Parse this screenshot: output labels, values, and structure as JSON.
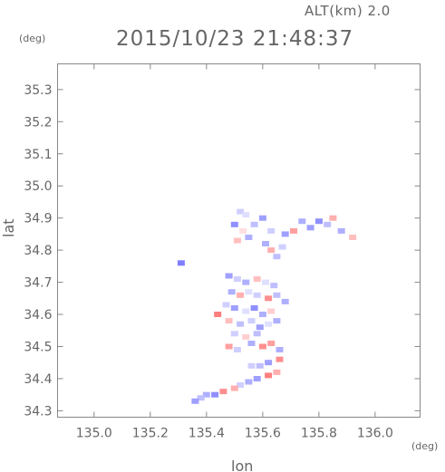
{
  "header": {
    "altitude": "ALT(km)  2.0",
    "datetime": "2015/10/23  21:48:37"
  },
  "axes": {
    "y_unit": "(deg)",
    "x_unit": "(deg)",
    "xlabel": "lon",
    "ylabel": "lat"
  },
  "chart_data": {
    "type": "heatmap",
    "xlabel": "lon",
    "ylabel": "lat",
    "xlim": [
      134.87,
      136.16
    ],
    "ylim": [
      34.28,
      35.38
    ],
    "x_ticks": [
      "135.0",
      "135.2",
      "135.4",
      "135.6",
      "135.8",
      "136.0"
    ],
    "y_ticks": [
      "34.3",
      "34.4",
      "34.5",
      "34.6",
      "34.7",
      "34.8",
      "34.9",
      "35.0",
      "35.1",
      "35.2",
      "35.3"
    ],
    "x_tick_values": [
      135.0,
      135.2,
      135.4,
      135.6,
      135.8,
      136.0
    ],
    "y_tick_values": [
      34.3,
      34.4,
      34.5,
      34.6,
      34.7,
      34.8,
      34.9,
      35.0,
      35.1,
      35.2,
      35.3
    ],
    "colors": {
      "positive": "#ff6b6b",
      "negative": "#6b6bff",
      "neutral": "#d8d8ee"
    },
    "points": [
      {
        "lon": 135.52,
        "lat": 34.92,
        "v": -0.3
      },
      {
        "lon": 135.54,
        "lat": 34.91,
        "v": -0.2
      },
      {
        "lon": 135.5,
        "lat": 34.88,
        "v": -0.7
      },
      {
        "lon": 135.53,
        "lat": 34.86,
        "v": 0.2
      },
      {
        "lon": 135.55,
        "lat": 34.84,
        "v": -0.5
      },
      {
        "lon": 135.51,
        "lat": 34.83,
        "v": 0.4
      },
      {
        "lon": 135.57,
        "lat": 34.88,
        "v": -0.4
      },
      {
        "lon": 135.6,
        "lat": 34.9,
        "v": -0.6
      },
      {
        "lon": 135.63,
        "lat": 34.86,
        "v": -0.3
      },
      {
        "lon": 135.61,
        "lat": 34.82,
        "v": -0.5
      },
      {
        "lon": 135.63,
        "lat": 34.8,
        "v": 0.5
      },
      {
        "lon": 135.65,
        "lat": 34.78,
        "v": -0.4
      },
      {
        "lon": 135.67,
        "lat": 34.81,
        "v": -0.3
      },
      {
        "lon": 135.68,
        "lat": 34.85,
        "v": -0.6
      },
      {
        "lon": 135.71,
        "lat": 34.86,
        "v": 0.6
      },
      {
        "lon": 135.74,
        "lat": 34.89,
        "v": -0.5
      },
      {
        "lon": 135.77,
        "lat": 34.87,
        "v": -0.6
      },
      {
        "lon": 135.8,
        "lat": 34.89,
        "v": -0.7
      },
      {
        "lon": 135.83,
        "lat": 34.88,
        "v": -0.4
      },
      {
        "lon": 135.85,
        "lat": 34.9,
        "v": 0.5
      },
      {
        "lon": 135.88,
        "lat": 34.86,
        "v": -0.5
      },
      {
        "lon": 135.92,
        "lat": 34.84,
        "v": 0.4
      },
      {
        "lon": 135.31,
        "lat": 34.76,
        "v": -0.8
      },
      {
        "lon": 135.48,
        "lat": 34.72,
        "v": -0.6
      },
      {
        "lon": 135.51,
        "lat": 34.71,
        "v": -0.3
      },
      {
        "lon": 135.54,
        "lat": 34.7,
        "v": -0.5
      },
      {
        "lon": 135.58,
        "lat": 34.71,
        "v": 0.4
      },
      {
        "lon": 135.61,
        "lat": 34.7,
        "v": -0.2
      },
      {
        "lon": 135.64,
        "lat": 34.69,
        "v": -0.4
      },
      {
        "lon": 135.49,
        "lat": 34.67,
        "v": -0.5
      },
      {
        "lon": 135.52,
        "lat": 34.66,
        "v": 0.5
      },
      {
        "lon": 135.55,
        "lat": 34.67,
        "v": -0.2
      },
      {
        "lon": 135.58,
        "lat": 34.66,
        "v": -0.3
      },
      {
        "lon": 135.62,
        "lat": 34.65,
        "v": 0.7
      },
      {
        "lon": 135.65,
        "lat": 34.66,
        "v": -0.4
      },
      {
        "lon": 135.68,
        "lat": 34.64,
        "v": -0.5
      },
      {
        "lon": 135.47,
        "lat": 34.63,
        "v": -0.3
      },
      {
        "lon": 135.5,
        "lat": 34.62,
        "v": -0.6
      },
      {
        "lon": 135.54,
        "lat": 34.61,
        "v": -0.2
      },
      {
        "lon": 135.57,
        "lat": 34.62,
        "v": -0.7
      },
      {
        "lon": 135.6,
        "lat": 34.6,
        "v": -0.5
      },
      {
        "lon": 135.63,
        "lat": 34.61,
        "v": 0.3
      },
      {
        "lon": 135.44,
        "lat": 34.6,
        "v": 0.8
      },
      {
        "lon": 135.48,
        "lat": 34.58,
        "v": 0.4
      },
      {
        "lon": 135.52,
        "lat": 34.57,
        "v": -0.4
      },
      {
        "lon": 135.56,
        "lat": 34.58,
        "v": -0.3
      },
      {
        "lon": 135.59,
        "lat": 34.56,
        "v": -0.6
      },
      {
        "lon": 135.62,
        "lat": 34.57,
        "v": -0.2
      },
      {
        "lon": 135.65,
        "lat": 34.58,
        "v": -0.5
      },
      {
        "lon": 135.5,
        "lat": 34.54,
        "v": -0.3
      },
      {
        "lon": 135.54,
        "lat": 34.53,
        "v": 0.3
      },
      {
        "lon": 135.58,
        "lat": 34.54,
        "v": -0.4
      },
      {
        "lon": 135.48,
        "lat": 34.5,
        "v": 0.6
      },
      {
        "lon": 135.51,
        "lat": 34.49,
        "v": -0.3
      },
      {
        "lon": 135.56,
        "lat": 34.51,
        "v": -0.5
      },
      {
        "lon": 135.6,
        "lat": 34.5,
        "v": 0.7
      },
      {
        "lon": 135.63,
        "lat": 34.51,
        "v": 0.6
      },
      {
        "lon": 135.66,
        "lat": 34.49,
        "v": -0.5
      },
      {
        "lon": 135.66,
        "lat": 34.46,
        "v": 0.7
      },
      {
        "lon": 135.62,
        "lat": 34.45,
        "v": -0.6
      },
      {
        "lon": 135.59,
        "lat": 34.44,
        "v": -0.4
      },
      {
        "lon": 135.56,
        "lat": 34.44,
        "v": -0.3
      },
      {
        "lon": 135.65,
        "lat": 34.42,
        "v": 0.5
      },
      {
        "lon": 135.62,
        "lat": 34.41,
        "v": 0.8
      },
      {
        "lon": 135.58,
        "lat": 34.4,
        "v": -0.6
      },
      {
        "lon": 135.55,
        "lat": 34.39,
        "v": -0.5
      },
      {
        "lon": 135.52,
        "lat": 34.38,
        "v": -0.3
      },
      {
        "lon": 135.5,
        "lat": 34.37,
        "v": 0.5
      },
      {
        "lon": 135.46,
        "lat": 34.36,
        "v": 0.7
      },
      {
        "lon": 135.43,
        "lat": 34.35,
        "v": -0.7
      },
      {
        "lon": 135.4,
        "lat": 34.35,
        "v": -0.5
      },
      {
        "lon": 135.38,
        "lat": 34.34,
        "v": -0.4
      },
      {
        "lon": 135.36,
        "lat": 34.33,
        "v": -0.6
      }
    ]
  }
}
